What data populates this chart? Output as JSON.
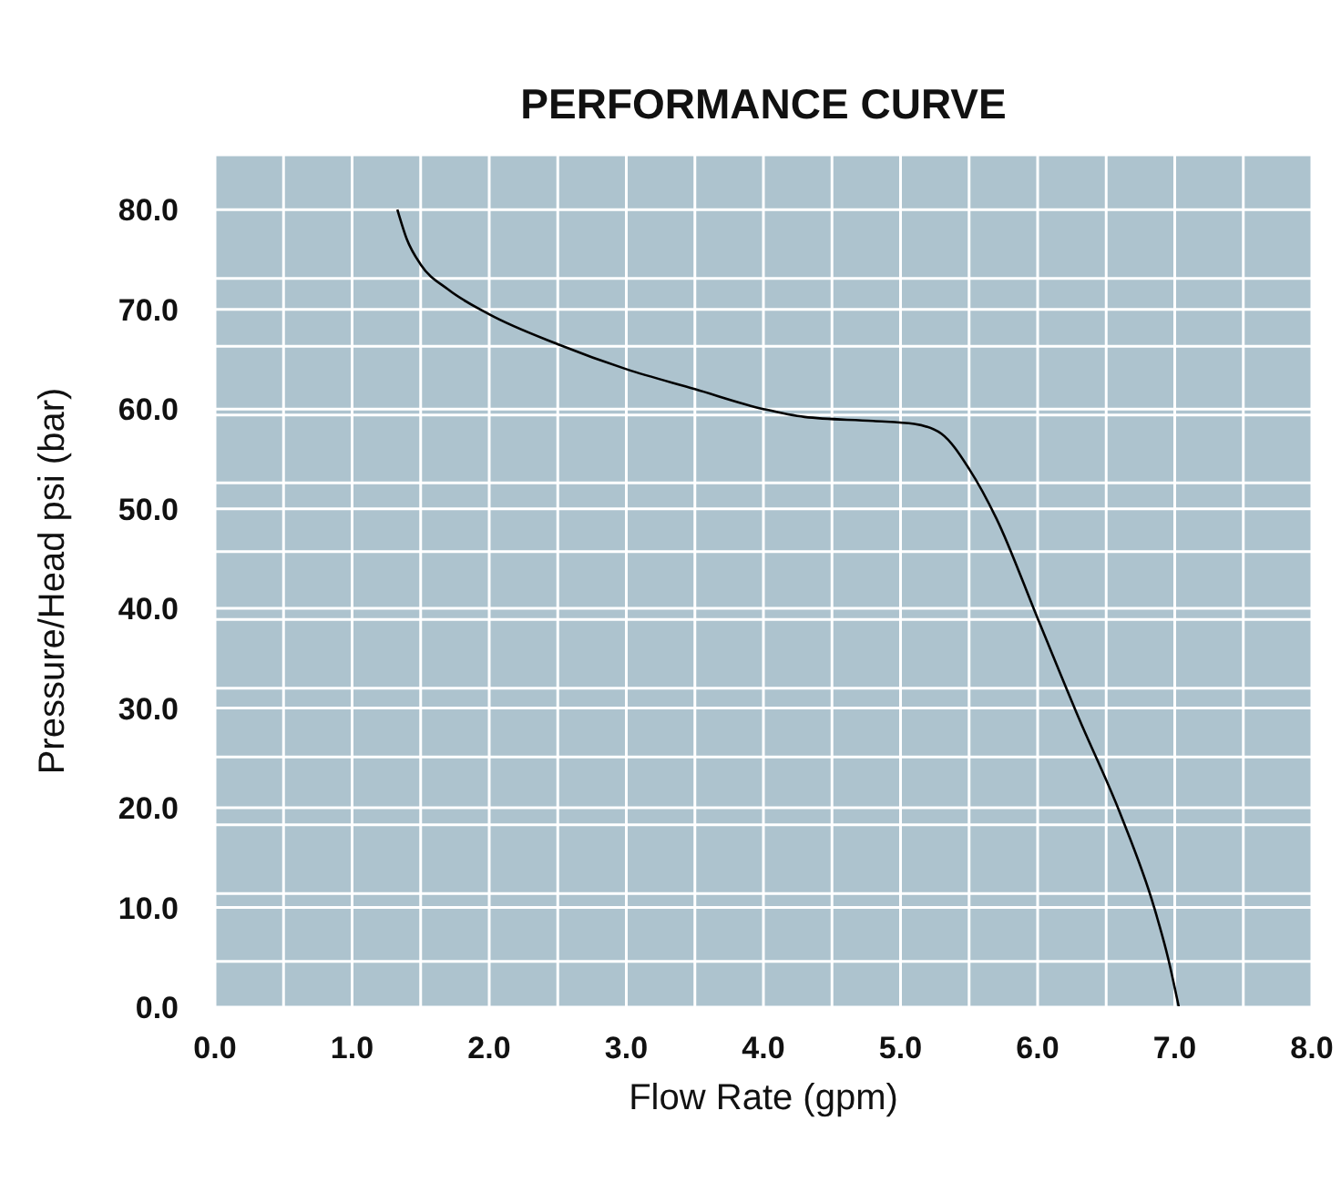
{
  "chart_data": {
    "type": "line",
    "title": "PERFORMANCE CURVE",
    "xlabel": "Flow Rate (gpm)",
    "ylabel": "Pressure/Head psi (bar)",
    "x": [
      1.33,
      1.4,
      1.5,
      1.7,
      2.0,
      2.5,
      3.0,
      3.5,
      4.0,
      4.3,
      4.8,
      5.1,
      5.3,
      5.5,
      5.7,
      6.0,
      6.3,
      6.6,
      6.85,
      6.95,
      7.03
    ],
    "series": [
      {
        "color": "#000000",
        "values": [
          80,
          77,
          74.5,
          72,
          69.5,
          66.5,
          64,
          62,
          60,
          59.2,
          58.8,
          58.5,
          57.5,
          54,
          49,
          39,
          29,
          19.5,
          10,
          5,
          0
        ]
      }
    ],
    "xlim": [
      0,
      8
    ],
    "ylim": [
      0,
      85.5
    ],
    "xticks": [
      {
        "value": 0,
        "label": "0.0"
      },
      {
        "value": 0.5,
        "label": null
      },
      {
        "value": 1,
        "label": "1.0"
      },
      {
        "value": 1.5,
        "label": null
      },
      {
        "value": 2,
        "label": "2.0"
      },
      {
        "value": 2.5,
        "label": null
      },
      {
        "value": 3,
        "label": "3.0"
      },
      {
        "value": 3.5,
        "label": null
      },
      {
        "value": 4,
        "label": "4.0"
      },
      {
        "value": 4.5,
        "label": null
      },
      {
        "value": 5,
        "label": "5.0"
      },
      {
        "value": 5.5,
        "label": null
      },
      {
        "value": 6,
        "label": "6.0"
      },
      {
        "value": 6.5,
        "label": null
      },
      {
        "value": 7,
        "label": "7.0"
      },
      {
        "value": 7.5,
        "label": null
      },
      {
        "value": 8,
        "label": "8.0"
      }
    ],
    "yticks": [
      {
        "value": 0,
        "label": "0.0"
      },
      {
        "value": 4.6,
        "label": null
      },
      {
        "value": 10,
        "label": "10.0"
      },
      {
        "value": 11.4,
        "label": null
      },
      {
        "value": 18.3,
        "label": null
      },
      {
        "value": 20,
        "label": "20.0"
      },
      {
        "value": 25.1,
        "label": null
      },
      {
        "value": 30,
        "label": "30.0"
      },
      {
        "value": 32,
        "label": null
      },
      {
        "value": 38.9,
        "label": null
      },
      {
        "value": 40,
        "label": "40.0"
      },
      {
        "value": 45.7,
        "label": null
      },
      {
        "value": 50,
        "label": "50.0"
      },
      {
        "value": 52.6,
        "label": null
      },
      {
        "value": 59.4,
        "label": null
      },
      {
        "value": 60,
        "label": "60.0"
      },
      {
        "value": 66.3,
        "label": null
      },
      {
        "value": 70,
        "label": "70.0"
      },
      {
        "value": 73.1,
        "label": null
      },
      {
        "value": 80,
        "label": "80.0"
      }
    ],
    "grid": true,
    "legend": false,
    "marker": "none",
    "line_style": "solid"
  }
}
